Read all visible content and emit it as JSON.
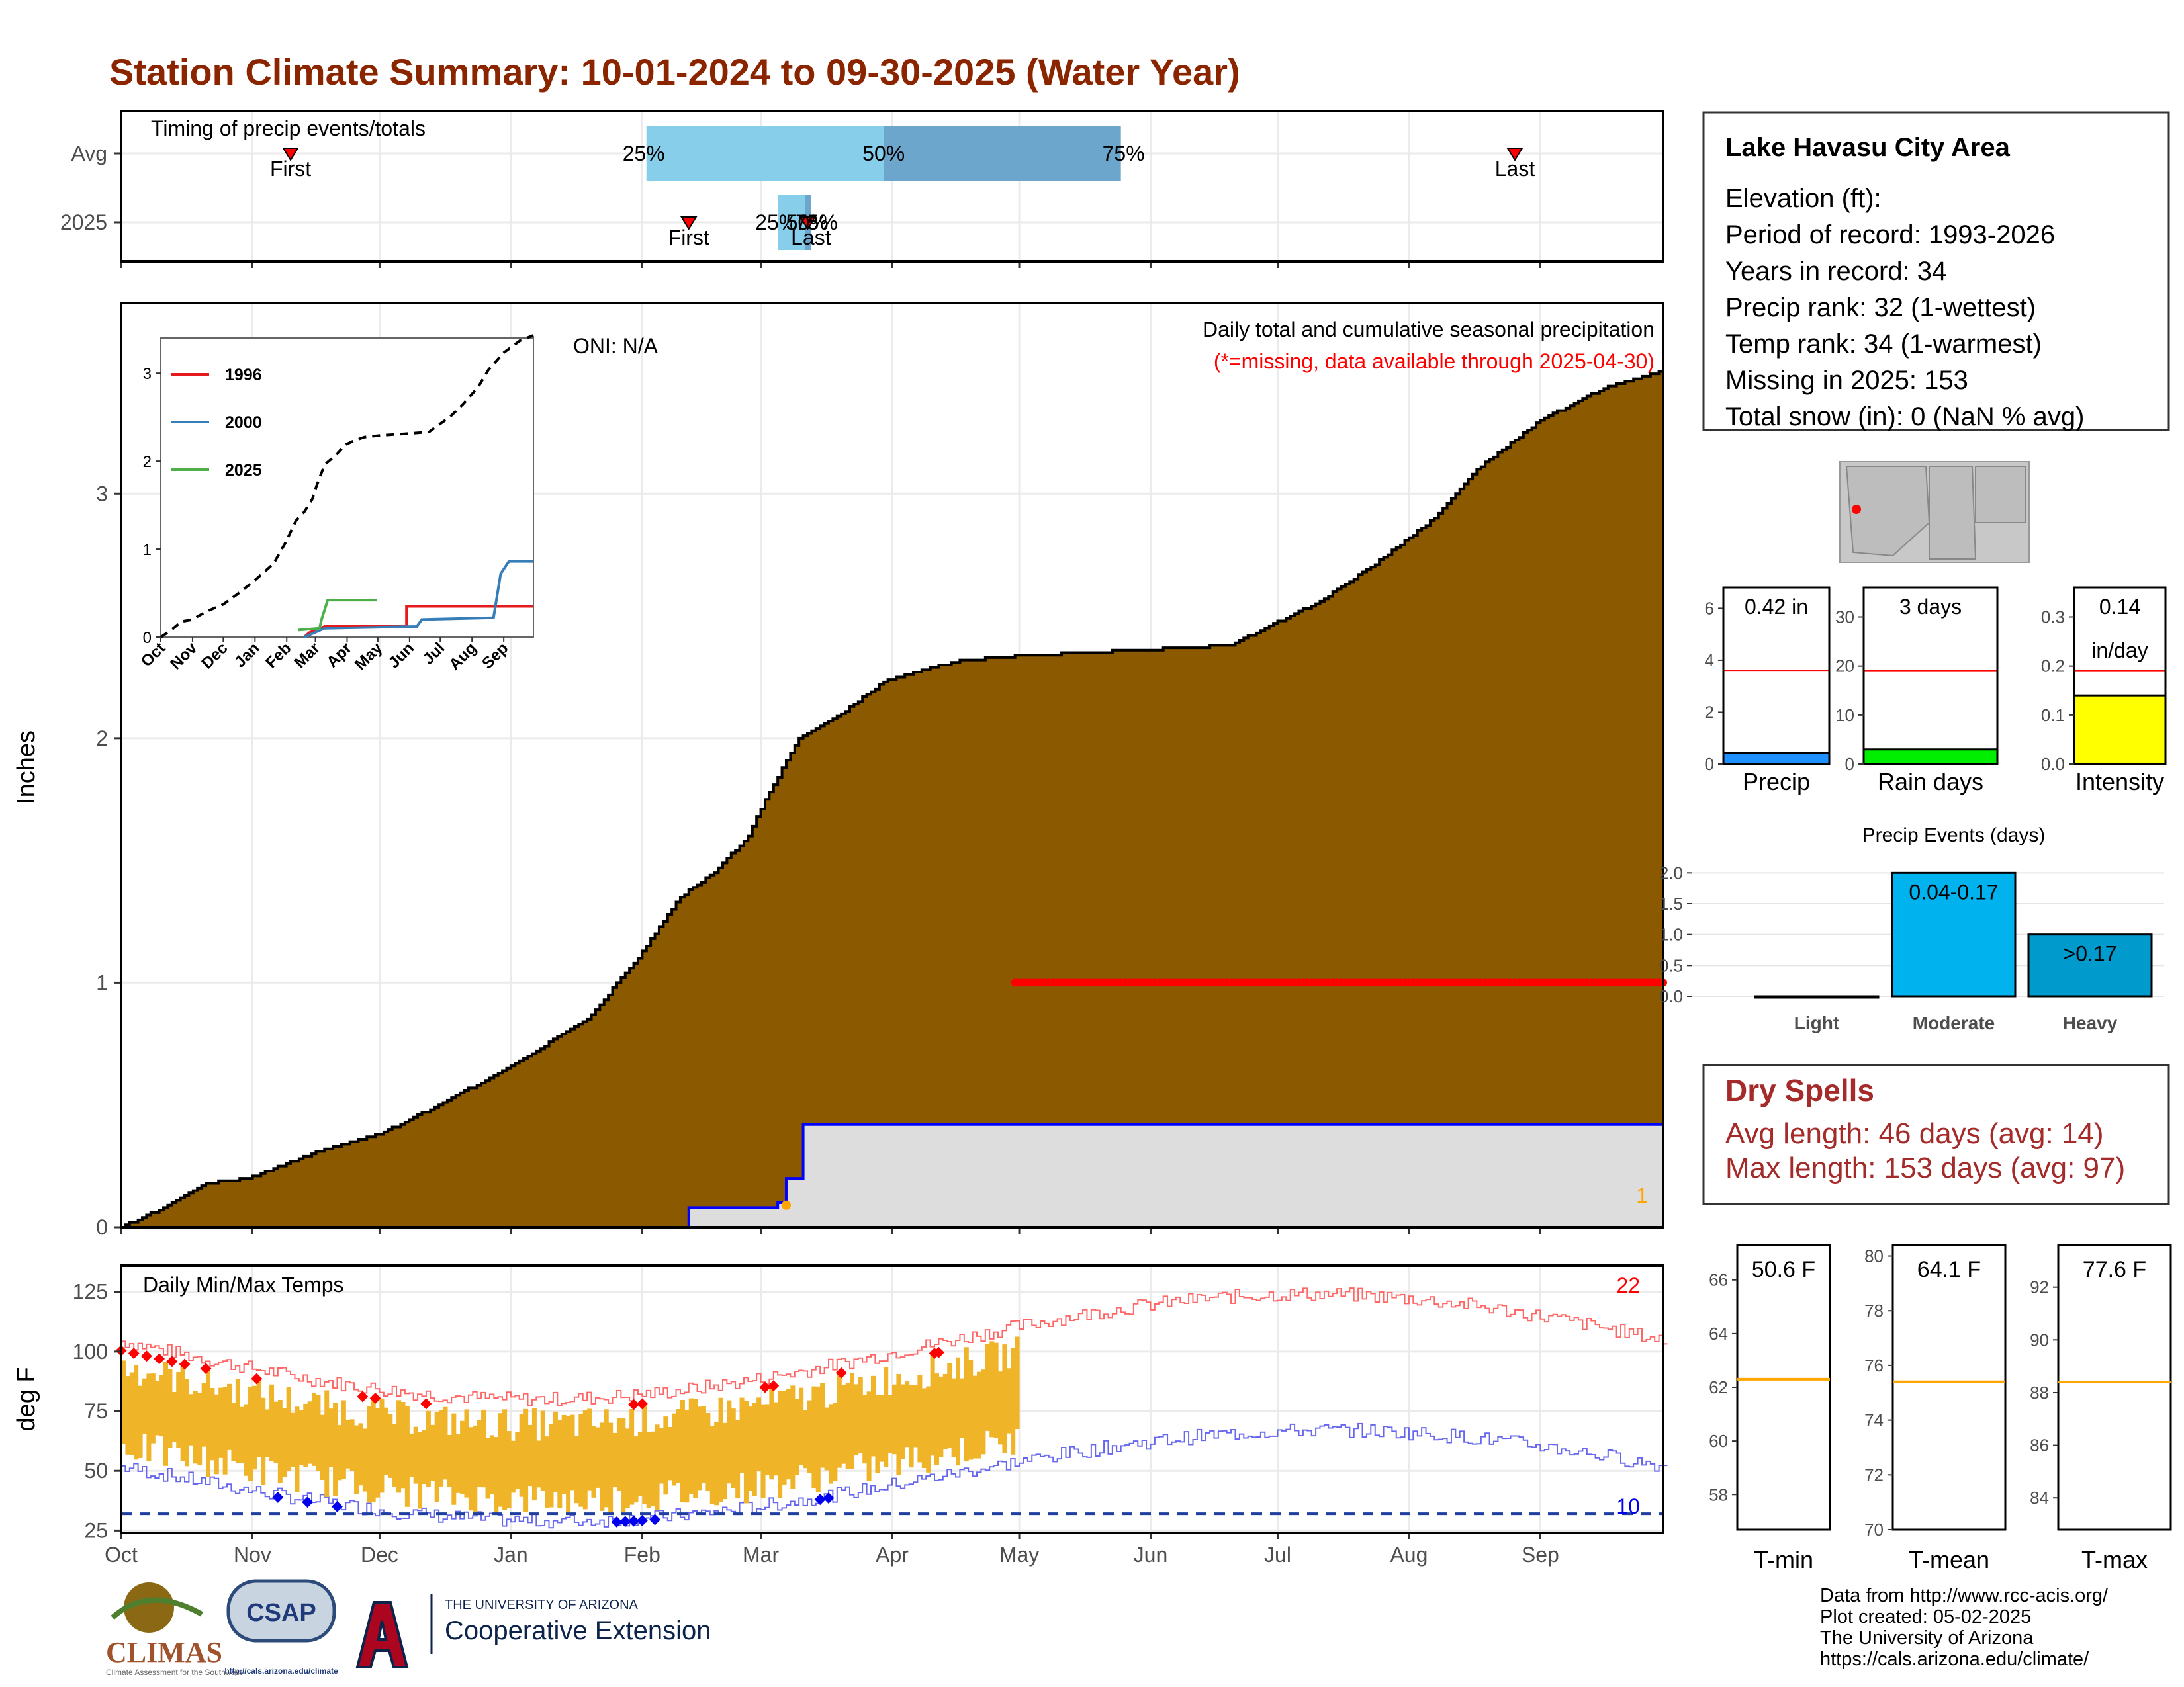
{
  "title": "Station Climate Summary: 10-01-2024 to 09-30-2025 (Water Year)",
  "colors": {
    "title": "#8B2500",
    "cumulative_fill": "#8B5A00",
    "missing_fill": "#DDDDDD",
    "current_line": "#0000FF",
    "missing_marker": "#FF0000",
    "temp_range": "#F0B428",
    "max_line": "#FF6666",
    "min_line": "#6666EE",
    "record_high": "#FF0000",
    "record_low": "#0000EE",
    "timing_light": "#87CEEB",
    "timing_dark": "#6CA6CD",
    "marker": "#FF0000",
    "precip_bar": "#1E90FF",
    "rain_days_bar": "#00EE00",
    "intensity_bar": "#FFFF00",
    "events_moderate": "#00B2EE",
    "events_heavy": "#009ACD",
    "mean_line": "#FFA500",
    "dry_spells_text": "#A52A2A"
  },
  "timing": {
    "header": "Timing of precip events/totals",
    "rows": [
      "Avg",
      "2025"
    ],
    "avg": {
      "first": "First",
      "last": "Last",
      "p25": "25%",
      "p50": "50%",
      "p75": "75%"
    },
    "current": {
      "first": "First",
      "last": "Last",
      "p25": "25%",
      "p50": "50%",
      "p75": "75%"
    }
  },
  "month_labels": [
    "Oct",
    "Nov",
    "Dec",
    "Jan",
    "Feb",
    "Mar",
    "Apr",
    "May",
    "Jun",
    "Jul",
    "Aug",
    "Sep"
  ],
  "main_panel": {
    "ylabel": "Inches",
    "oni": "ONI: N/A",
    "note_line1": "Daily total and cumulative seasonal precipitation",
    "note_line2": "(*=missing, data available through 2025-04-30)",
    "rank_label": "1"
  },
  "inset": {
    "legend": [
      "1996",
      "2000",
      "2025"
    ],
    "legend_colors": [
      "#E41A1C",
      "#377EB8",
      "#4DAF4A"
    ]
  },
  "temp_panel": {
    "ylabel": "deg F",
    "title": "Daily Min/Max Temps",
    "high_count": "22",
    "low_count": "10"
  },
  "station": {
    "name": "Lake Havasu City Area",
    "lines": [
      "Elevation (ft):",
      "Period of record: 1993-2026",
      "Years in record: 34",
      "Precip rank: 32 (1-wettest)",
      "Temp rank: 34 (1-warmest)",
      "Missing in 2025: 153",
      "Total snow (in): 0 (NaN % avg)"
    ]
  },
  "small_bars": [
    {
      "label": "Precip",
      "value_text": "0.42 in",
      "value": 0.42,
      "avg": 3.6,
      "ylim": [
        0,
        6.8
      ],
      "ticks": [
        0,
        2,
        4,
        6
      ]
    },
    {
      "label": "Rain days",
      "value_text": "3 days",
      "value": 3,
      "avg": 19,
      "ylim": [
        0,
        36
      ],
      "ticks": [
        0,
        10,
        20,
        30
      ]
    },
    {
      "label": "Intensity",
      "value_text": "0.14",
      "value_text2": "in/day",
      "value": 0.14,
      "avg": 0.19,
      "ylim": [
        0,
        0.36
      ],
      "ticks": [
        "0.0",
        "0.1",
        "0.2",
        "0.3"
      ]
    }
  ],
  "events": {
    "title": "Precip Events (days)",
    "categories": [
      "Light",
      "Moderate",
      "Heavy"
    ],
    "labels": [
      "",
      "0.04-0.17",
      ">0.17"
    ],
    "values": [
      0,
      2,
      1
    ],
    "ticks": [
      "0.0",
      "0.5",
      "1.0",
      "1.5",
      "2.0"
    ]
  },
  "dry_spells": {
    "title": "Dry Spells",
    "avg": "Avg length: 46 days (avg: 14)",
    "max": "Max length: 153 days (avg: 97)"
  },
  "temp_boxes": [
    {
      "label": "T-min",
      "value_text": "50.6 F",
      "mean": 62.3,
      "ylim": [
        56.7,
        67.3
      ],
      "ticks": [
        58,
        60,
        62,
        64,
        66
      ]
    },
    {
      "label": "T-mean",
      "value_text": "64.1 F",
      "mean": 75.4,
      "ylim": [
        70,
        80.4
      ],
      "ticks": [
        70,
        72,
        74,
        76,
        78,
        80
      ]
    },
    {
      "label": "T-max",
      "value_text": "77.6 F",
      "mean": 88.4,
      "ylim": [
        82.8,
        93.6
      ],
      "ticks": [
        84,
        86,
        88,
        90,
        92
      ]
    }
  ],
  "logos": {
    "climas": "CLIMAS",
    "climas_sub": "Climate Assessment for the Southwest",
    "csap": "CSAP",
    "csap_url": "http://cals.arizona.edu/climate",
    "ua_small": "THE UNIVERSITY OF ARIZONA",
    "ua_big": "Cooperative Extension"
  },
  "credits": [
    "Data from http://www.rcc-acis.org/",
    "Plot created: 05-02-2025",
    "The University of Arizona",
    "https://cals.arizona.edu/climate/"
  ],
  "chart_data": {
    "type": "area",
    "title": "Station Climate Summary: 10-01-2024 to 09-30-2025 (Water Year)",
    "ylabel": "Inches",
    "ylim": [
      0,
      3.78
    ],
    "x_range": [
      "2024-10-01",
      "2025-09-30"
    ],
    "x_ticks": [
      "Oct",
      "Nov",
      "Dec",
      "Jan",
      "Feb",
      "Mar",
      "Apr",
      "May",
      "Jun",
      "Jul",
      "Aug",
      "Sep"
    ],
    "y_ticks": [
      0,
      1,
      2,
      3
    ],
    "series": [
      {
        "name": "average cumulative",
        "x_day": [
          0,
          10,
          20,
          30,
          45,
          61,
          75,
          91,
          110,
          122,
          132,
          140,
          148,
          152,
          160,
          170,
          180,
          189,
          199,
          215,
          240,
          262,
          270,
          282,
          295,
          310,
          320,
          335,
          351,
          364
        ],
        "y": [
          0,
          0.08,
          0.18,
          0.2,
          0.3,
          0.38,
          0.5,
          0.65,
          0.85,
          1.1,
          1.35,
          1.45,
          1.6,
          1.75,
          2.0,
          2.1,
          2.23,
          2.28,
          2.32,
          2.34,
          2.36,
          2.38,
          2.45,
          2.55,
          2.7,
          2.9,
          3.1,
          3.3,
          3.44,
          3.5
        ]
      },
      {
        "name": "2025 cumulative",
        "steps_x_day": [
          134,
          155,
          157,
          161,
          163,
          364
        ],
        "steps_y": [
          0.08,
          0.1,
          0.2,
          0.42,
          0.42,
          0.42
        ]
      }
    ],
    "missing_marker_range_day": [
      211,
      364
    ],
    "missing_marker_y": 1.0,
    "temps": {
      "ylim": [
        24,
        136
      ],
      "y_ticks": [
        25,
        50,
        75,
        100,
        125
      ],
      "available_through_day": 211,
      "normal_max_start": 110,
      "normal_max_end": 109,
      "freezing_line": 32
    },
    "timing": {
      "avg_first_day": 40,
      "avg_p25_day": 124,
      "avg_p50_day": 180,
      "avg_p75_day": 236,
      "avg_last_day": 329,
      "cur_first_day": 134,
      "cur_p25_day": 155,
      "cur_p50_day": 161,
      "cur_p75_day": 162,
      "cur_last_day": 163
    }
  }
}
